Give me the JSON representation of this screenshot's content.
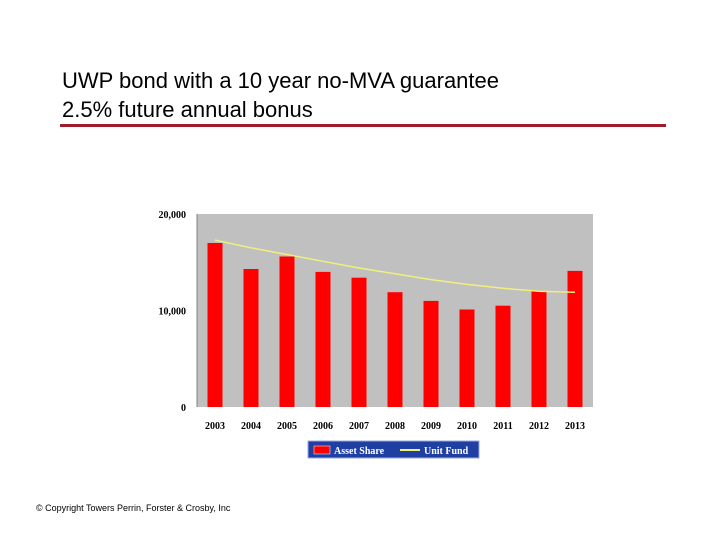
{
  "slide": {
    "title_line1": "UWP bond with a 10 year no-MVA guarantee",
    "title_line2": "2.5% future annual bonus",
    "copyright": "© Copyright Towers Perrin, Forster & Crosby, Inc"
  },
  "colors": {
    "rule": "#a11c2a",
    "plot_bg": "#c0c0c0",
    "bar": "#ff0000",
    "line": "#f2ef7a",
    "legend_bg": "#1f3fa3"
  },
  "chart_data": {
    "type": "bar",
    "title": "",
    "xlabel": "",
    "ylabel": "",
    "categories": [
      "2003",
      "2004",
      "2005",
      "2006",
      "2007",
      "2008",
      "2009",
      "2010",
      "2011",
      "2012",
      "2013"
    ],
    "ylim": [
      0,
      20000
    ],
    "yticks": [
      0,
      10000,
      20000
    ],
    "ytick_labels": [
      "0",
      "10,000",
      "20,000"
    ],
    "grid": false,
    "legend": "bottom",
    "series": [
      {
        "name": "Asset Share",
        "type": "bar",
        "values": [
          17000,
          14300,
          15600,
          14000,
          13400,
          11900,
          11000,
          10100,
          10500,
          12000,
          14100
        ]
      },
      {
        "name": "Unit Fund",
        "type": "line",
        "values": [
          17300,
          16500,
          15800,
          15100,
          14400,
          13800,
          13200,
          12700,
          12300,
          12000,
          11900
        ]
      }
    ]
  }
}
